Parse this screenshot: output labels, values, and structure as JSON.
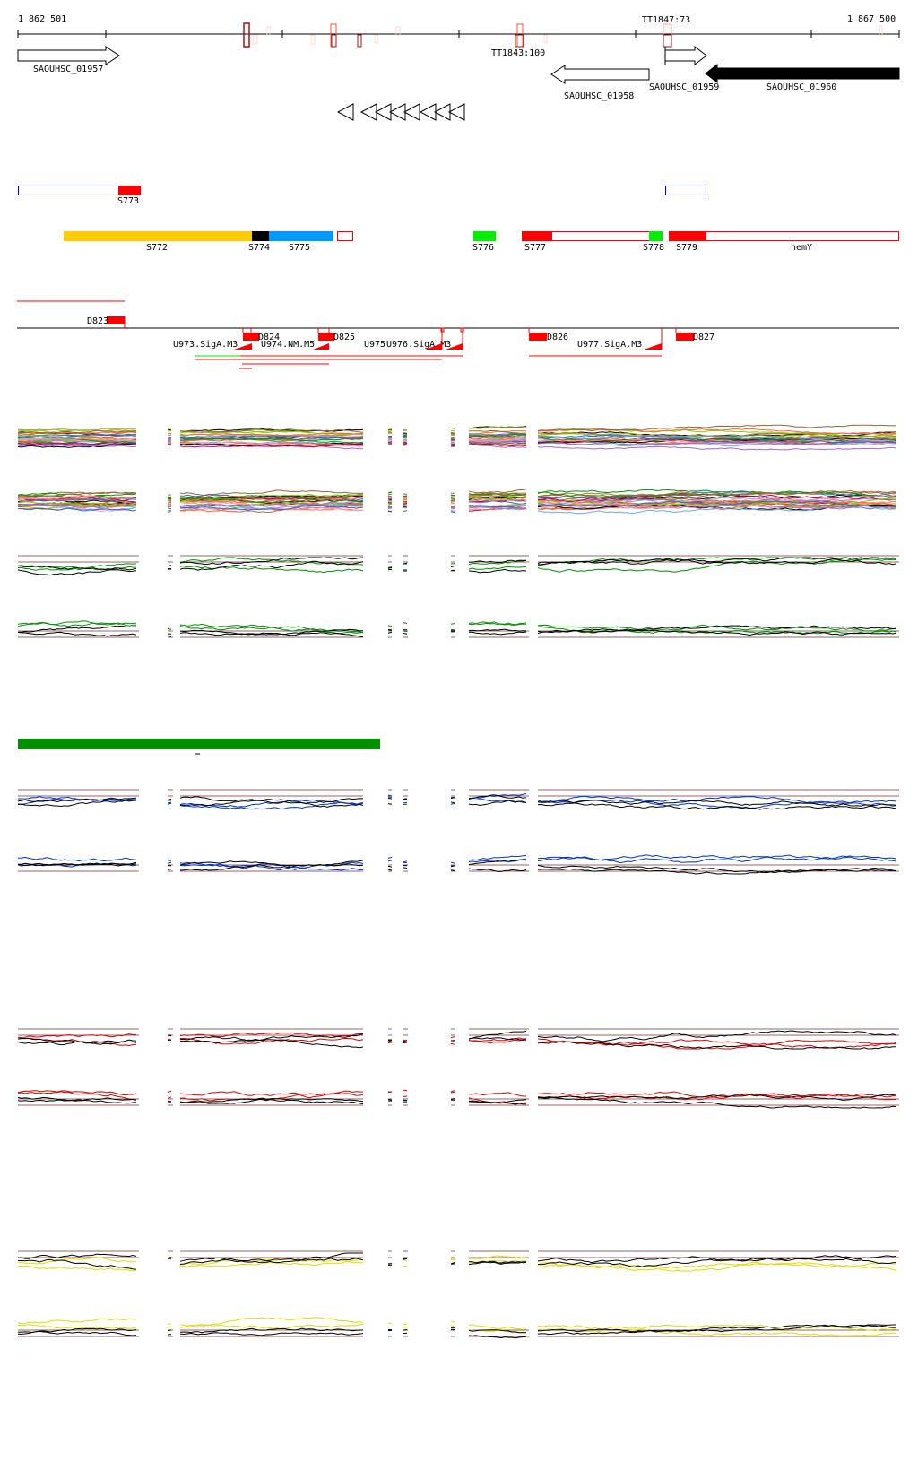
{
  "coords": {
    "start": "1 862 501",
    "end": "1 867 500"
  },
  "terminators": [
    {
      "label": "TT1843:100"
    },
    {
      "label": "TT1847:73"
    }
  ],
  "genes": [
    {
      "label": "SAOUHSC_01957",
      "strand": "+",
      "filled": false
    },
    {
      "label": "SAOUHSC_01958",
      "strand": "-",
      "filled": false
    },
    {
      "label": "SAOUHSC_01959",
      "strand": "+",
      "filled": false
    },
    {
      "label": "SAOUHSC_01960",
      "strand": "-",
      "filled": true
    }
  ],
  "segments": {
    "s773": "S773",
    "s772": "S772",
    "s774": "S774",
    "s775": "S775",
    "s776": "S776",
    "s777": "S777",
    "s778": "S778",
    "s779": "S779",
    "hemY": "hemY"
  },
  "promoters": {
    "d823": "D823",
    "d824": "D824",
    "d825": "D825",
    "d826": "D826",
    "d827": "D827",
    "u973": "U973.SigA.M3",
    "u974": "U974.NM.M5",
    "u975": "U975",
    "u976": "U976.SigA.M3",
    "u977": "U977.SigA.M3"
  },
  "colors": {
    "red": "#ff0000",
    "blue": "#0000dd",
    "yellow": "#ffcc00",
    "skyblue": "#0099ff",
    "green": "#00ee00",
    "darkgreen": "#009000",
    "brown": "#996666",
    "trackBlue": "#0033cc",
    "trackRed": "#dd0000",
    "trackYellow": "#dddd00"
  }
}
